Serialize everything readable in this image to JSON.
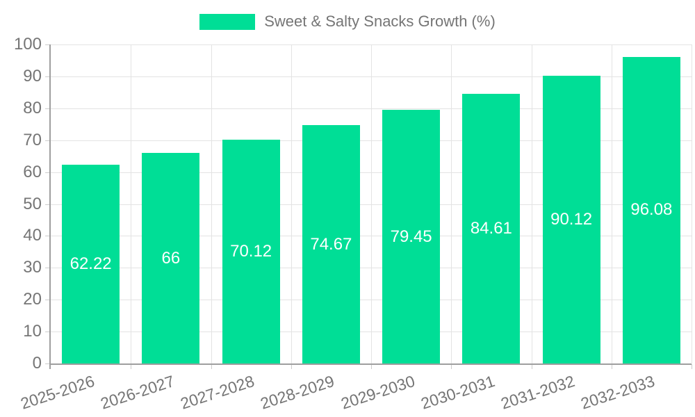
{
  "chart_data": {
    "type": "bar",
    "legend": {
      "label": "Sweet & Salty Snacks Growth (%)",
      "position": "top"
    },
    "categories": [
      "2025-2026",
      "2026-2027",
      "2027-2028",
      "2028-2029",
      "2029-2030",
      "2030-2031",
      "2031-2032",
      "2032-2033"
    ],
    "values": [
      62.22,
      66,
      70.12,
      74.67,
      79.45,
      84.61,
      90.12,
      96.08
    ],
    "value_labels": [
      "62.22",
      "66",
      "70.12",
      "74.67",
      "79.45",
      "84.61",
      "90.12",
      "96.08"
    ],
    "xlabel": "",
    "ylabel": "",
    "ylim": [
      0,
      100
    ],
    "yticks": [
      0,
      10,
      20,
      30,
      40,
      50,
      60,
      70,
      80,
      90,
      100
    ],
    "grid": true,
    "x_label_rotation_deg": -18,
    "colors": {
      "bar": "#00de96",
      "value_label": "#ffffff",
      "axis_text": "#757575",
      "grid_line": "#e3e3e3",
      "tick_mark": "#cccccc",
      "axis_line": "#9e9e9e",
      "background": "#ffffff"
    }
  }
}
